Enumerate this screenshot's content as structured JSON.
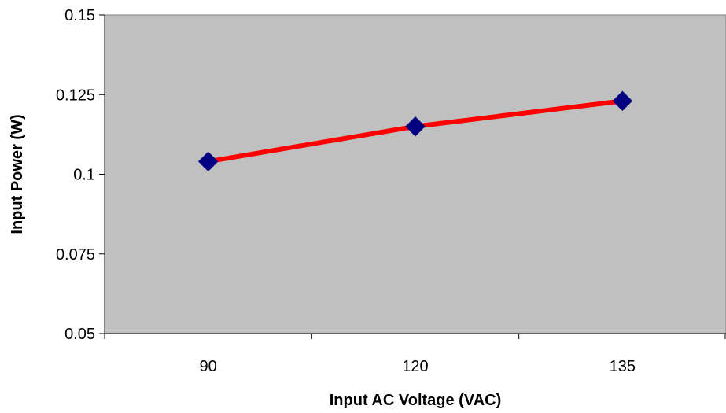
{
  "chart_data": {
    "type": "line",
    "title": "",
    "xlabel": "Input AC Voltage (VAC)",
    "ylabel": "Input Power (W)",
    "categories": [
      "90",
      "120",
      "135"
    ],
    "series": [
      {
        "values": [
          0.104,
          0.115,
          0.123
        ]
      }
    ],
    "ylim": [
      0.05,
      0.15
    ],
    "yticks": [
      0.05,
      0.075,
      0.1,
      0.125,
      0.15
    ],
    "ytick_labels": [
      "0.05",
      "0.075",
      "0.1",
      "0.125",
      "0.15"
    ],
    "grid": false,
    "legend": "none",
    "colors": {
      "plot_background": "#C0C0C0",
      "line": "#FF0000",
      "marker": "#000080",
      "axis": "#000000"
    },
    "marker": "diamond"
  }
}
